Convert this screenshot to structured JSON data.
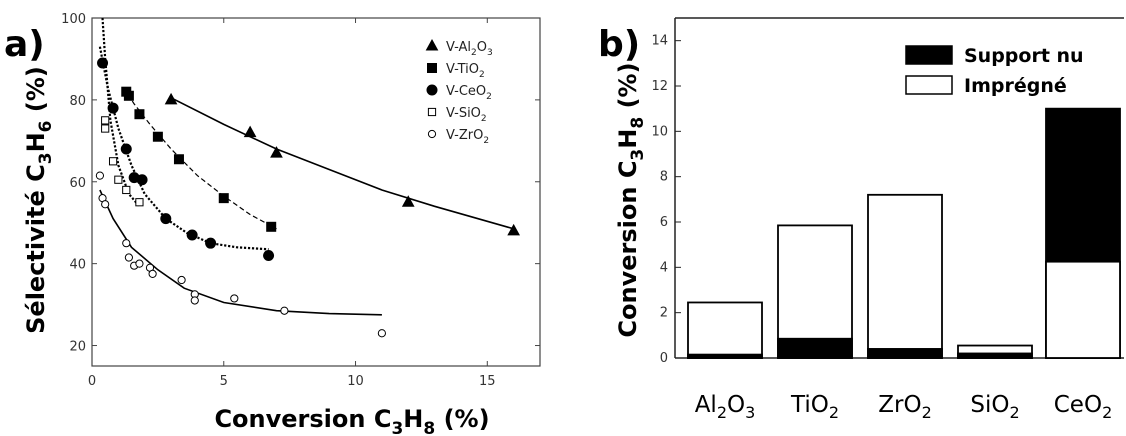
{
  "chart_data": [
    {
      "type": "scatter",
      "panel": "a)",
      "xlabel": {
        "pre": "Conversion C",
        "s1": "3",
        "mid": "H",
        "s2": "8",
        "post": " (%)"
      },
      "ylabel": {
        "pre": "Sélectivité C",
        "s1": "3",
        "mid": "H",
        "s2": "6",
        "post": " (%)"
      },
      "xlim": [
        0,
        17
      ],
      "ylim": [
        15,
        100
      ],
      "xticks": [
        0,
        5,
        10,
        15
      ],
      "yticks": [
        20,
        40,
        60,
        80,
        100
      ],
      "series": [
        {
          "name": "V-Al2O3",
          "name_parts": {
            "a": "V-Al",
            "s1": "2",
            "b": "O",
            "s2": "3"
          },
          "marker": "triangle",
          "filled": true,
          "line": "solid",
          "points": [
            [
              3.0,
              80
            ],
            [
              6.0,
              72
            ],
            [
              7.0,
              67
            ],
            [
              12.0,
              55
            ],
            [
              16.0,
              48
            ]
          ],
          "curve": [
            [
              3.0,
              80.5
            ],
            [
              5.0,
              74
            ],
            [
              7.0,
              68
            ],
            [
              9.0,
              63
            ],
            [
              11.0,
              58
            ],
            [
              13.0,
              54
            ],
            [
              16.0,
              48.5
            ]
          ]
        },
        {
          "name": "V-TiO2",
          "name_parts": {
            "a": "V-TiO",
            "s1": "2",
            "b": "",
            "s2": ""
          },
          "marker": "square",
          "filled": true,
          "line": "dashed",
          "points": [
            [
              1.3,
              82
            ],
            [
              1.4,
              81
            ],
            [
              1.8,
              76.5
            ],
            [
              2.5,
              71
            ],
            [
              3.3,
              65.5
            ],
            [
              5.0,
              56
            ],
            [
              6.8,
              49
            ]
          ],
          "curve": [
            [
              1.2,
              83
            ],
            [
              1.6,
              79
            ],
            [
              2.2,
              74
            ],
            [
              3.0,
              68
            ],
            [
              4.0,
              61.5
            ],
            [
              5.0,
              56.5
            ],
            [
              6.0,
              52
            ],
            [
              7.0,
              48.5
            ]
          ]
        },
        {
          "name": "V-CeO2",
          "name_parts": {
            "a": "V-CeO",
            "s1": "2",
            "b": "",
            "s2": ""
          },
          "marker": "circle",
          "filled": true,
          "line": "dotted",
          "points": [
            [
              0.4,
              89
            ],
            [
              0.8,
              78
            ],
            [
              1.3,
              68
            ],
            [
              1.6,
              61
            ],
            [
              1.9,
              60.5
            ],
            [
              2.8,
              51
            ],
            [
              3.8,
              47
            ],
            [
              4.5,
              45
            ],
            [
              6.7,
              42
            ]
          ],
          "curve": [
            [
              0.3,
              93
            ],
            [
              0.6,
              83
            ],
            [
              1.0,
              73
            ],
            [
              1.5,
              64
            ],
            [
              2.0,
              57
            ],
            [
              2.8,
              51
            ],
            [
              3.6,
              47.5
            ],
            [
              4.5,
              45
            ],
            [
              5.5,
              44
            ],
            [
              6.7,
              43.5
            ]
          ]
        },
        {
          "name": "V-SiO2",
          "name_parts": {
            "a": "V-SiO",
            "s1": "2",
            "b": "",
            "s2": ""
          },
          "marker": "square",
          "filled": false,
          "line": "dotted",
          "points": [
            [
              0.5,
              75
            ],
            [
              0.5,
              73
            ],
            [
              0.8,
              65
            ],
            [
              1.0,
              60.5
            ],
            [
              1.3,
              58
            ],
            [
              1.8,
              55
            ]
          ],
          "curve": [
            [
              0.4,
              100
            ],
            [
              0.5,
              90
            ],
            [
              0.7,
              75
            ],
            [
              1.0,
              64
            ],
            [
              1.4,
              57
            ],
            [
              1.8,
              54
            ]
          ]
        },
        {
          "name": "V-ZrO2",
          "name_parts": {
            "a": "V-ZrO",
            "s1": "2",
            "b": "",
            "s2": ""
          },
          "marker": "circle",
          "filled": false,
          "line": "solid",
          "points": [
            [
              0.3,
              61.5
            ],
            [
              0.4,
              56
            ],
            [
              0.5,
              54.5
            ],
            [
              1.3,
              45
            ],
            [
              1.4,
              41.5
            ],
            [
              1.6,
              39.5
            ],
            [
              1.8,
              40
            ],
            [
              2.2,
              39
            ],
            [
              2.3,
              37.5
            ],
            [
              3.4,
              36
            ],
            [
              3.9,
              32.5
            ],
            [
              3.9,
              31
            ],
            [
              5.4,
              31.5
            ],
            [
              7.3,
              28.5
            ],
            [
              11.0,
              23
            ]
          ],
          "curve": [
            [
              0.3,
              58
            ],
            [
              0.8,
              51
            ],
            [
              1.5,
              44
            ],
            [
              2.5,
              38.5
            ],
            [
              3.5,
              34
            ],
            [
              5.0,
              30.5
            ],
            [
              7.0,
              28.5
            ],
            [
              9.0,
              27.8
            ],
            [
              11.0,
              27.5
            ]
          ]
        }
      ]
    },
    {
      "type": "bar",
      "panel": "b)",
      "ylabel": {
        "pre": "Conversion C",
        "s1": "3",
        "mid": "H",
        "s2": "8",
        "post": " (%)"
      },
      "ylim": [
        0,
        15
      ],
      "yticks": [
        0,
        2,
        4,
        6,
        8,
        10,
        12,
        14
      ],
      "categories": [
        {
          "base": "Al",
          "s1": "2",
          "mid": "O",
          "s2": "3"
        },
        {
          "base": "TiO",
          "s1": "2",
          "mid": "",
          "s2": ""
        },
        {
          "base": "ZrO",
          "s1": "2",
          "mid": "",
          "s2": ""
        },
        {
          "base": "SiO",
          "s1": "2",
          "mid": "",
          "s2": ""
        },
        {
          "base": "CeO",
          "s1": "2",
          "mid": "",
          "s2": ""
        }
      ],
      "series": [
        {
          "name": "Support nu",
          "fill": "#000000",
          "values": [
            0.15,
            0.85,
            0.4,
            0.2,
            11.0
          ]
        },
        {
          "name": "Imprégné",
          "fill": "#ffffff",
          "values": [
            2.45,
            5.85,
            7.2,
            0.55,
            4.25
          ]
        }
      ],
      "legend_position": "top-right"
    }
  ]
}
